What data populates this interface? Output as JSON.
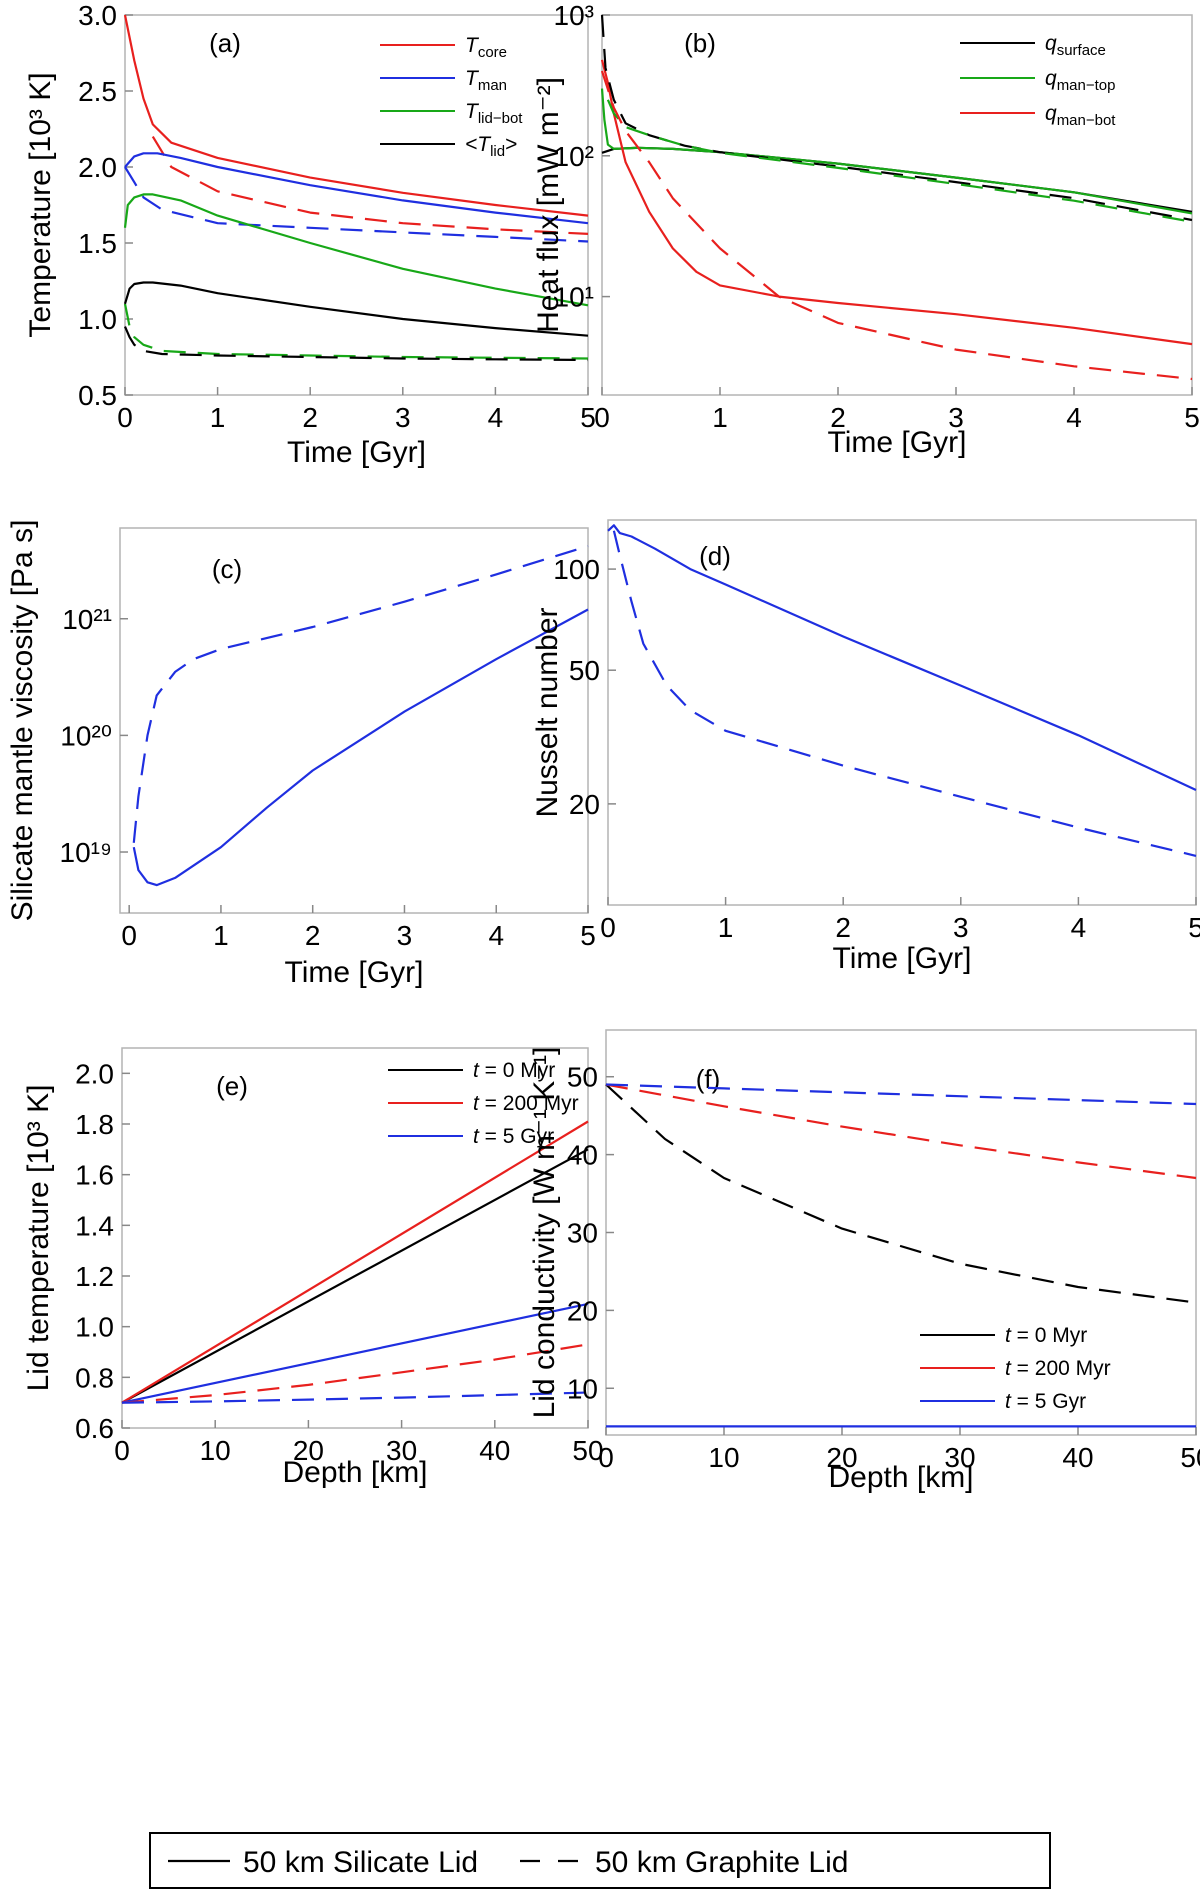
{
  "figure": {
    "legend": {
      "solid": "50 km Silicate Lid",
      "dashed": "50 km Graphite Lid"
    }
  },
  "chart_data": [
    {
      "panel": "(a)",
      "type": "line",
      "scale": "linear",
      "xlabel": "Time [Gyr]",
      "ylabel": "Temperature [10³ K]",
      "xlim": [
        0,
        5
      ],
      "ylim": [
        0.5,
        3.0
      ],
      "xticks": [
        "0",
        "1",
        "2",
        "3",
        "4",
        "5"
      ],
      "yticks": [
        "0.5",
        "1.0",
        "1.5",
        "2.0",
        "2.5",
        "3.0"
      ],
      "ytick_values": [
        0.5,
        1.0,
        1.5,
        2.0,
        2.5,
        3.0
      ],
      "legend_items": [
        {
          "main": "T",
          "sub": "core",
          "color": "#e8201e"
        },
        {
          "main": "T",
          "sub": "man",
          "color": "#1f2fe0"
        },
        {
          "main": "T",
          "sub": "lid−bot",
          "color": "#18a818"
        },
        {
          "main": "<T",
          "sub": "lid",
          "tail": ">",
          "color": "#000000"
        }
      ],
      "series": [
        {
          "name": "T_core silicate",
          "color": "#e8201e",
          "dash": false,
          "x": [
            0,
            0.1,
            0.2,
            0.3,
            0.5,
            1,
            2,
            3,
            4,
            5
          ],
          "y": [
            3.0,
            2.7,
            2.45,
            2.28,
            2.16,
            2.06,
            1.93,
            1.83,
            1.75,
            1.68
          ]
        },
        {
          "name": "T_core graphite",
          "color": "#e8201e",
          "dash": true,
          "x": [
            0.3,
            0.5,
            1,
            2,
            3,
            4,
            5
          ],
          "y": [
            2.2,
            2.0,
            1.84,
            1.7,
            1.63,
            1.59,
            1.56
          ]
        },
        {
          "name": "T_man silicate",
          "color": "#1f2fe0",
          "dash": false,
          "x": [
            0,
            0.1,
            0.2,
            0.35,
            0.6,
            1,
            2,
            3,
            4,
            5
          ],
          "y": [
            2.0,
            2.07,
            2.09,
            2.09,
            2.06,
            2.0,
            1.88,
            1.78,
            1.7,
            1.63
          ]
        },
        {
          "name": "T_man graphite",
          "color": "#1f2fe0",
          "dash": true,
          "x": [
            0,
            0.1,
            0.2,
            0.4,
            1,
            2,
            3,
            4,
            5
          ],
          "y": [
            2.0,
            1.9,
            1.8,
            1.72,
            1.63,
            1.6,
            1.57,
            1.54,
            1.51
          ]
        },
        {
          "name": "T_lid-bot silicate",
          "color": "#18a818",
          "dash": false,
          "x": [
            0,
            0.03,
            0.1,
            0.2,
            0.3,
            0.6,
            1,
            2,
            3,
            4,
            5
          ],
          "y": [
            1.6,
            1.75,
            1.8,
            1.82,
            1.82,
            1.78,
            1.68,
            1.5,
            1.33,
            1.2,
            1.09
          ]
        },
        {
          "name": "T_lid-bot graphite",
          "color": "#18a818",
          "dash": true,
          "x": [
            0,
            0.05,
            0.1,
            0.2,
            0.4,
            1,
            2,
            3,
            4,
            5
          ],
          "y": [
            1.1,
            0.95,
            0.88,
            0.83,
            0.79,
            0.77,
            0.76,
            0.75,
            0.745,
            0.74
          ]
        },
        {
          "name": "<T_lid> silicate",
          "color": "#000000",
          "dash": false,
          "x": [
            0,
            0.05,
            0.1,
            0.2,
            0.3,
            0.6,
            1,
            2,
            3,
            4,
            5
          ],
          "y": [
            1.1,
            1.2,
            1.23,
            1.24,
            1.24,
            1.22,
            1.17,
            1.08,
            1.0,
            0.94,
            0.89
          ]
        },
        {
          "name": "<T_lid> graphite",
          "color": "#000000",
          "dash": true,
          "x": [
            0,
            0.05,
            0.1,
            0.2,
            0.4,
            1,
            2,
            3,
            4,
            5
          ],
          "y": [
            0.95,
            0.88,
            0.83,
            0.79,
            0.77,
            0.76,
            0.75,
            0.74,
            0.735,
            0.73
          ]
        }
      ]
    },
    {
      "panel": "(b)",
      "type": "line",
      "scale": "log",
      "xlabel": "Time [Gyr]",
      "ylabel": "Heat flux [mW m⁻²]",
      "xlim": [
        0,
        5
      ],
      "ylim": [
        2,
        1000
      ],
      "xticks": [
        "0",
        "1",
        "2",
        "3",
        "4",
        "5"
      ],
      "yticks": [
        "10¹",
        "10²",
        "10³"
      ],
      "ytick_values": [
        10,
        100,
        1000
      ],
      "legend_items": [
        {
          "main": "q",
          "sub": "surface",
          "color": "#000000"
        },
        {
          "main": "q",
          "sub": "man−top",
          "color": "#18a818"
        },
        {
          "main": "q",
          "sub": "man−bot",
          "color": "#e8201e"
        }
      ],
      "series": [
        {
          "name": "q_surface silicate",
          "color": "#000000",
          "dash": false,
          "x": [
            0,
            0.1,
            0.3,
            0.6,
            1,
            2,
            3,
            4,
            5
          ],
          "y": [
            105,
            112,
            114,
            112,
            106,
            88,
            70,
            55,
            40
          ]
        },
        {
          "name": "q_man-top silicate",
          "color": "#18a818",
          "dash": false,
          "x": [
            0,
            0.02,
            0.05,
            0.1,
            0.3,
            0.6,
            1,
            2,
            3,
            4,
            5
          ],
          "y": [
            300,
            180,
            120,
            112,
            114,
            112,
            106,
            88,
            70,
            55,
            39
          ]
        },
        {
          "name": "q_man-bot silicate",
          "color": "#e8201e",
          "dash": false,
          "x": [
            0,
            0.05,
            0.1,
            0.2,
            0.4,
            0.6,
            0.8,
            1,
            1.5,
            2,
            3,
            4,
            5
          ],
          "y": [
            480,
            330,
            200,
            90,
            40,
            22,
            15,
            12,
            10,
            9,
            7.5,
            6,
            4.6
          ]
        },
        {
          "name": "q_surface graphite",
          "color": "#000000",
          "dash": true,
          "x": [
            0,
            0.03,
            0.1,
            0.2,
            0.4,
            0.7,
            1,
            2,
            3,
            4,
            5
          ],
          "y": [
            1000,
            420,
            250,
            170,
            140,
            118,
            106,
            84,
            65,
            50,
            35
          ]
        },
        {
          "name": "q_man-top graphite",
          "color": "#18a818",
          "dash": true,
          "x": [
            0.05,
            0.1,
            0.2,
            0.4,
            0.7,
            1,
            2,
            3,
            4,
            5
          ],
          "y": [
            250,
            200,
            160,
            140,
            118,
            105,
            82,
            63,
            48,
            34
          ]
        },
        {
          "name": "q_man-bot graphite",
          "color": "#e8201e",
          "dash": true,
          "x": [
            0,
            0.1,
            0.2,
            0.4,
            0.6,
            1,
            1.5,
            2,
            3,
            4,
            5
          ],
          "y": [
            400,
            220,
            150,
            90,
            50,
            22,
            10,
            6.5,
            4.2,
            3.2,
            2.6
          ]
        }
      ]
    },
    {
      "panel": "(c)",
      "type": "line",
      "scale": "log",
      "xlabel": "Time [Gyr]",
      "ylabel": "Silicate mantle viscosity [Pa s]",
      "xlim": [
        -0.1,
        5
      ],
      "ylim": [
        3e+18,
        6e+21
      ],
      "xticks": [
        "0",
        "1",
        "2",
        "3",
        "4",
        "5"
      ],
      "yticks": [
        "10¹⁹",
        "10²⁰",
        "10²¹"
      ],
      "ytick_values": [
        1e+19,
        1e+20,
        1e+21
      ],
      "legend_items": [],
      "series": [
        {
          "name": "viscosity silicate",
          "color": "#1f2fe0",
          "dash": false,
          "x": [
            0.05,
            0.1,
            0.2,
            0.3,
            0.5,
            1,
            1.5,
            2,
            3,
            4,
            5
          ],
          "y": [
            1.1e+19,
            7e+18,
            5.5e+18,
            5.2e+18,
            6e+18,
            1.1e+19,
            2.4e+19,
            5e+19,
            1.6e+20,
            4.5e+20,
            1.2e+21
          ]
        },
        {
          "name": "viscosity graphite",
          "color": "#1f2fe0",
          "dash": true,
          "x": [
            0.05,
            0.1,
            0.2,
            0.3,
            0.5,
            0.7,
            1,
            2,
            3,
            4,
            5
          ],
          "y": [
            1.2e+19,
            3e+19,
            1e+20,
            2.2e+20,
            3.5e+20,
            4.5e+20,
            5.5e+20,
            8.5e+20,
            1.4e+21,
            2.4e+21,
            4.2e+21
          ]
        }
      ]
    },
    {
      "panel": "(d)",
      "type": "line",
      "scale": "log",
      "xlabel": "Time [Gyr]",
      "ylabel": "Nusselt number",
      "xlim": [
        0,
        5
      ],
      "ylim": [
        10,
        140
      ],
      "xticks": [
        "0",
        "1",
        "2",
        "3",
        "4",
        "5"
      ],
      "yticks": [
        "20",
        "50",
        "100"
      ],
      "ytick_values": [
        20,
        50,
        100
      ],
      "legend_items": [],
      "series": [
        {
          "name": "Nu silicate",
          "color": "#1f2fe0",
          "dash": false,
          "x": [
            0,
            0.05,
            0.1,
            0.2,
            0.4,
            0.7,
            1,
            2,
            3,
            4,
            5
          ],
          "y": [
            130,
            135,
            128,
            125,
            115,
            100,
            90,
            63,
            45,
            32,
            22
          ]
        },
        {
          "name": "Nu graphite",
          "color": "#1f2fe0",
          "dash": true,
          "x": [
            0.05,
            0.1,
            0.2,
            0.3,
            0.5,
            0.7,
            1,
            2,
            3,
            4,
            5
          ],
          "y": [
            130,
            110,
            80,
            60,
            45,
            38,
            33,
            26,
            21,
            17,
            14
          ]
        }
      ]
    },
    {
      "panel": "(e)",
      "type": "line",
      "scale": "linear",
      "xlabel": "Depth [km]",
      "ylabel": "Lid temperature [10³ K]",
      "xlim": [
        0,
        50
      ],
      "ylim": [
        0.6,
        2.1
      ],
      "xticks": [
        "0",
        "10",
        "20",
        "30",
        "40",
        "50"
      ],
      "yticks": [
        "0.6",
        "0.8",
        "1.0",
        "1.2",
        "1.4",
        "1.6",
        "1.8",
        "2.0"
      ],
      "ytick_values": [
        0.6,
        0.8,
        1.0,
        1.2,
        1.4,
        1.6,
        1.8,
        2.0
      ],
      "legend_items": [
        {
          "main": "t",
          "tail": " = 0 Myr",
          "color": "#000000"
        },
        {
          "main": "t",
          "tail": " = 200 Myr",
          "color": "#e8201e"
        },
        {
          "main": "t",
          "tail": " = 5 Gyr",
          "color": "#1f2fe0"
        }
      ],
      "series": [
        {
          "name": "t=0 silicate",
          "color": "#000000",
          "dash": false,
          "x": [
            0,
            50
          ],
          "y": [
            0.7,
            1.7
          ]
        },
        {
          "name": "t=200 Myr silicate",
          "color": "#e8201e",
          "dash": false,
          "x": [
            0,
            50
          ],
          "y": [
            0.7,
            1.81
          ]
        },
        {
          "name": "t=5 Gyr silicate",
          "color": "#1f2fe0",
          "dash": false,
          "x": [
            0,
            50
          ],
          "y": [
            0.7,
            1.09
          ]
        },
        {
          "name": "t=200 Myr graphite",
          "color": "#e8201e",
          "dash": true,
          "x": [
            0,
            10,
            20,
            30,
            40,
            50
          ],
          "y": [
            0.7,
            0.73,
            0.77,
            0.82,
            0.87,
            0.93
          ]
        },
        {
          "name": "t=5 Gyr graphite",
          "color": "#1f2fe0",
          "dash": true,
          "x": [
            0,
            10,
            20,
            30,
            40,
            50
          ],
          "y": [
            0.7,
            0.705,
            0.712,
            0.72,
            0.73,
            0.74
          ]
        }
      ]
    },
    {
      "panel": "(f)",
      "type": "line",
      "scale": "linear",
      "xlabel": "Depth [km]",
      "ylabel": "Lid conductivity [W m⁻¹ K⁻¹]",
      "xlim": [
        0,
        50
      ],
      "ylim": [
        4,
        56
      ],
      "xticks": [
        "0",
        "10",
        "20",
        "30",
        "40",
        "50"
      ],
      "yticks": [
        "10",
        "20",
        "30",
        "40",
        "50"
      ],
      "ytick_values": [
        10,
        20,
        30,
        40,
        50
      ],
      "legend_items": [
        {
          "main": "t",
          "tail": " = 0 Myr",
          "color": "#000000"
        },
        {
          "main": "t",
          "tail": " = 200 Myr",
          "color": "#e8201e"
        },
        {
          "main": "t",
          "tail": " = 5 Gyr",
          "color": "#1f2fe0"
        }
      ],
      "series": [
        {
          "name": "k silicate (all t)",
          "color": "#1f2fe0",
          "dash": false,
          "x": [
            0,
            50
          ],
          "y": [
            5.1,
            5.1
          ]
        },
        {
          "name": "t=0 graphite",
          "color": "#000000",
          "dash": true,
          "x": [
            0,
            5,
            10,
            20,
            30,
            40,
            50
          ],
          "y": [
            49,
            42,
            37,
            30.5,
            26,
            23,
            21
          ]
        },
        {
          "name": "t=200 Myr graphite",
          "color": "#e8201e",
          "dash": true,
          "x": [
            0,
            10,
            20,
            30,
            40,
            50
          ],
          "y": [
            49,
            46.2,
            43.6,
            41.2,
            39,
            37
          ]
        },
        {
          "name": "t=5 Gyr graphite",
          "color": "#1f2fe0",
          "dash": true,
          "x": [
            0,
            10,
            20,
            30,
            40,
            50
          ],
          "y": [
            49,
            48.5,
            48,
            47.5,
            47,
            46.5
          ]
        }
      ]
    }
  ]
}
